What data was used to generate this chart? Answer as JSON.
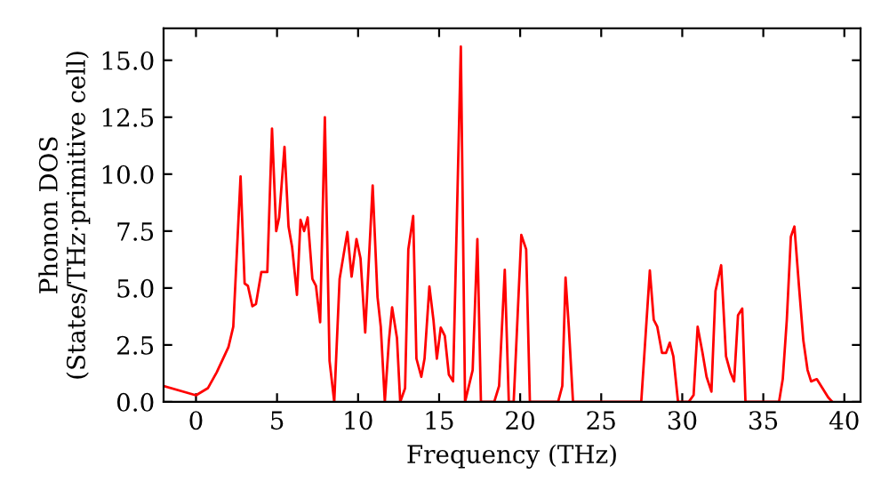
{
  "chart_data": {
    "type": "line",
    "xlabel": "Frequency (THz)",
    "ylabel": "Phonon DOS\n(States/THz·primitive cell)",
    "xlim": [
      -2,
      41
    ],
    "ylim": [
      0,
      16.4
    ],
    "xticks": [
      0,
      5,
      10,
      15,
      20,
      25,
      30,
      35,
      40
    ],
    "yticks": [
      {
        "value": 0,
        "label": "0.0"
      },
      {
        "value": 2.5,
        "label": "2.5"
      },
      {
        "value": 5,
        "label": "5.0"
      },
      {
        "value": 7.5,
        "label": "7.5"
      },
      {
        "value": 10,
        "label": "10.0"
      },
      {
        "value": 12.5,
        "label": "12.5"
      },
      {
        "value": 15,
        "label": "15.0"
      }
    ],
    "grid": false,
    "line_style": "solid",
    "marker": "none",
    "series": [
      {
        "color": "#ff0000",
        "x": [
          -1.9,
          0,
          0.73,
          1.28,
          2.0,
          2.3,
          2.75,
          3.0,
          3.2,
          3.48,
          3.7,
          4.03,
          4.4,
          4.69,
          4.95,
          5.13,
          5.46,
          5.71,
          5.93,
          6.23,
          6.45,
          6.67,
          6.89,
          7.18,
          7.4,
          7.66,
          7.95,
          8.24,
          8.53,
          8.86,
          9.34,
          9.6,
          9.9,
          10.15,
          10.44,
          10.9,
          11.2,
          11.4,
          11.65,
          11.9,
          12.1,
          12.4,
          12.6,
          12.9,
          13.1,
          13.4,
          13.6,
          13.9,
          14.1,
          14.4,
          14.65,
          14.86,
          15.1,
          15.35,
          15.6,
          15.86,
          16.1,
          16.34,
          16.6,
          17.07,
          17.36,
          17.58,
          18.4,
          18.7,
          19.05,
          19.3,
          19.6,
          20.07,
          20.37,
          20.6,
          22.34,
          22.6,
          22.8,
          23.0,
          23.26,
          27.47,
          28.0,
          28.24,
          28.46,
          28.75,
          29.0,
          29.23,
          29.45,
          29.74,
          30.4,
          30.7,
          30.95,
          31.25,
          31.5,
          31.8,
          32.05,
          32.4,
          32.7,
          32.97,
          33.2,
          33.44,
          33.7,
          33.9,
          35.97,
          36.2,
          36.45,
          36.7,
          36.92,
          37.2,
          37.47,
          37.73,
          37.95,
          38.3,
          38.65,
          39.0,
          39.26
        ],
        "values": [
          0.68,
          0.29,
          0.6,
          1.3,
          2.4,
          3.3,
          9.9,
          5.2,
          5.1,
          4.2,
          4.3,
          5.7,
          5.7,
          12.0,
          7.5,
          8.1,
          11.2,
          7.7,
          6.8,
          4.7,
          8.0,
          7.5,
          8.1,
          5.4,
          5.1,
          3.5,
          12.5,
          1.8,
          0,
          5.4,
          7.46,
          5.5,
          7.15,
          6.3,
          3.05,
          9.5,
          4.6,
          3.3,
          0,
          2.67,
          4.15,
          2.8,
          0,
          0.6,
          6.7,
          8.16,
          1.9,
          1.1,
          1.9,
          5.07,
          3.6,
          1.9,
          3.26,
          2.9,
          1.2,
          0.9,
          8.2,
          15.6,
          0,
          1.4,
          7.15,
          0,
          0,
          0.7,
          5.8,
          0,
          0,
          7.33,
          6.7,
          0,
          0,
          0.7,
          5.46,
          3.3,
          0,
          0,
          5.77,
          3.6,
          3.3,
          2.15,
          2.15,
          2.6,
          2.0,
          0,
          0,
          0.3,
          3.3,
          2.15,
          1.1,
          0.45,
          4.87,
          6.0,
          2.0,
          1.3,
          0.9,
          3.8,
          4.1,
          0,
          0,
          1.0,
          3.6,
          7.25,
          7.7,
          5.1,
          2.7,
          1.4,
          0.9,
          1.0,
          0.6,
          0.2,
          0
        ]
      }
    ]
  }
}
